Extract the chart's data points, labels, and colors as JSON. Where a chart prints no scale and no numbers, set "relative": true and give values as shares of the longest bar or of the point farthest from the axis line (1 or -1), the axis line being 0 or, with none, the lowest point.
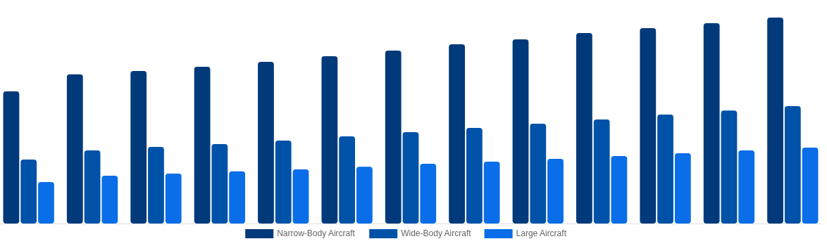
{
  "chart_data": {
    "type": "bar",
    "relative": true,
    "legend": "bottom",
    "categories": [
      null,
      null,
      null,
      null,
      null,
      null,
      null,
      null,
      null,
      null,
      null,
      null,
      null
    ],
    "series": [
      {
        "name": "Narrow-Body Aircraft",
        "color": "#003a7a",
        "values": [
          0.642,
          0.724,
          0.741,
          0.761,
          0.785,
          0.812,
          0.84,
          0.87,
          0.894,
          0.925,
          0.949,
          0.973,
          1
        ]
      },
      {
        "name": "Wide-Body Aircraft",
        "color": "#0052a8",
        "values": [
          0.311,
          0.355,
          0.372,
          0.386,
          0.403,
          0.423,
          0.444,
          0.464,
          0.485,
          0.505,
          0.529,
          0.549,
          0.57
        ]
      },
      {
        "name": "Large Aircraft",
        "color": "#0a6ee8",
        "values": [
          0.201,
          0.232,
          0.242,
          0.253,
          0.263,
          0.276,
          0.29,
          0.3,
          0.314,
          0.328,
          0.341,
          0.355,
          0.369
        ]
      }
    ]
  }
}
